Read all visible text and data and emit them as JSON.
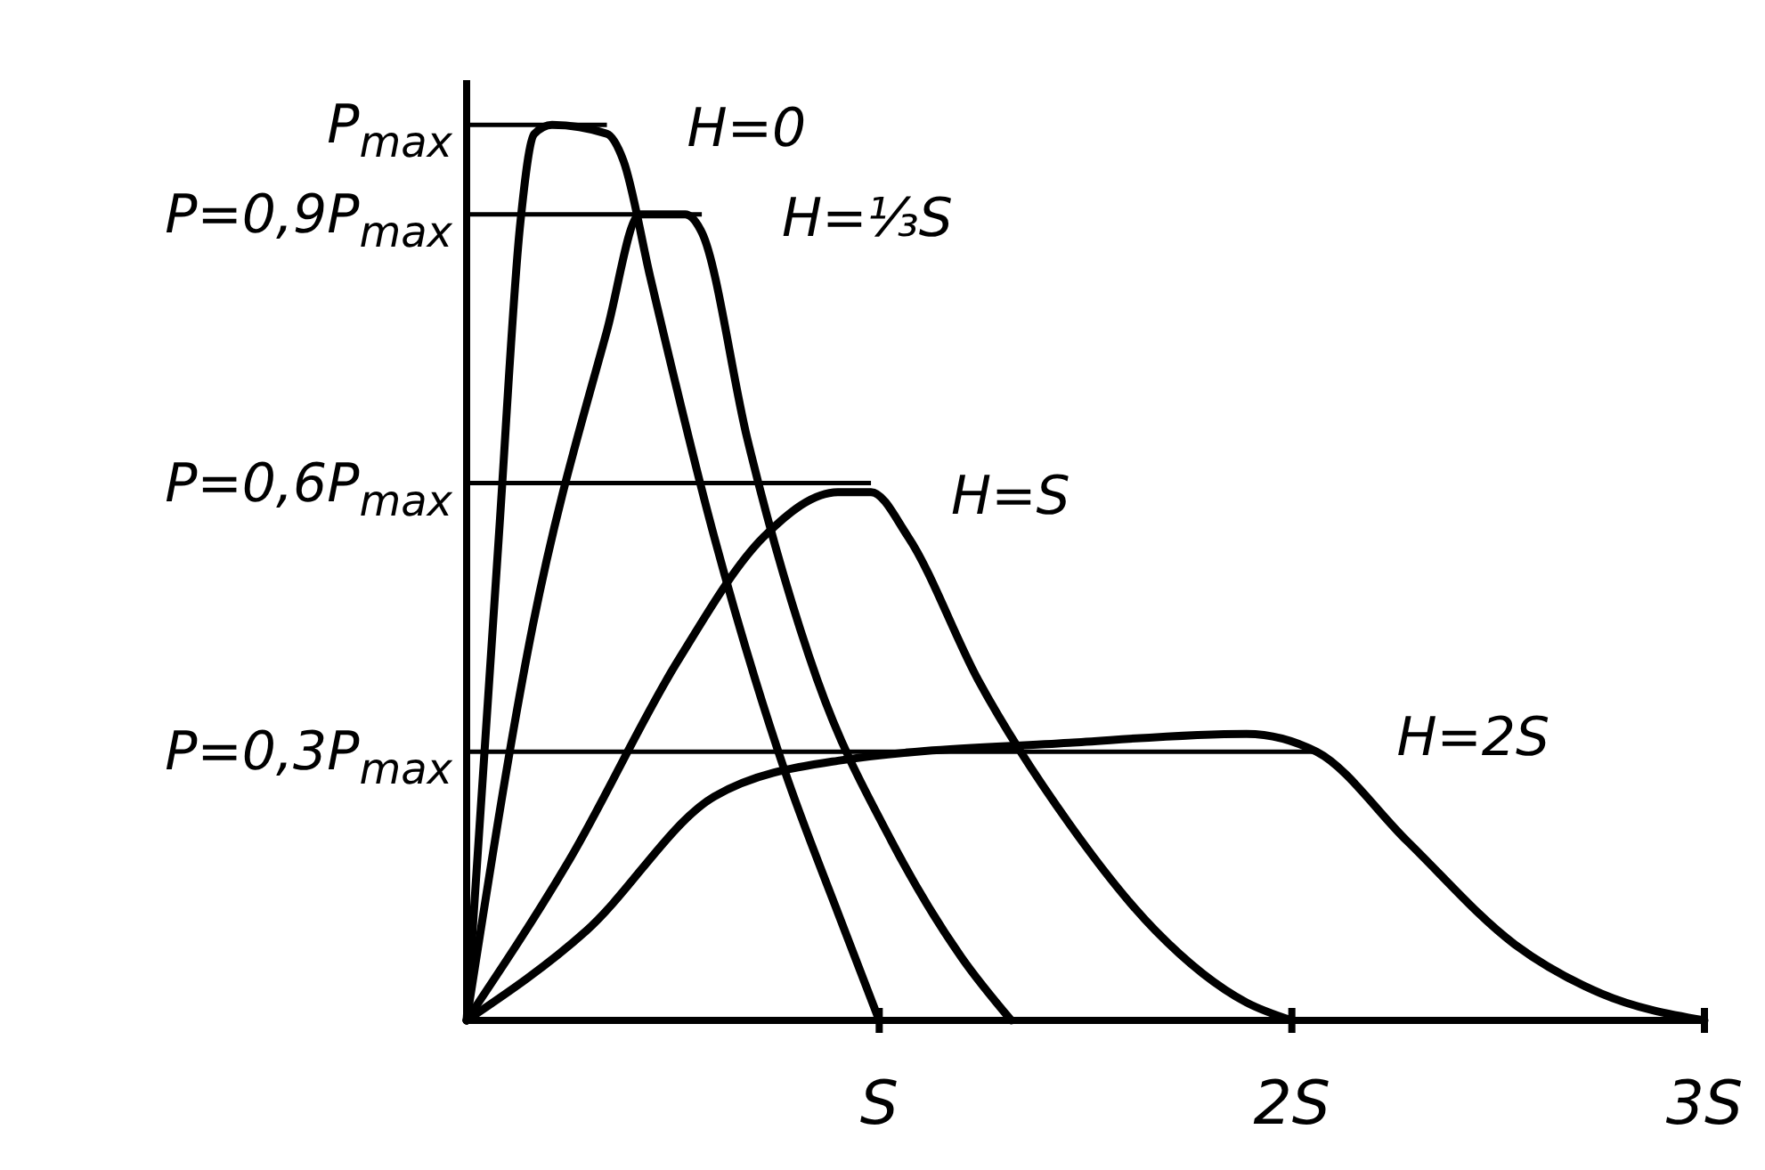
{
  "chart_data": {
    "type": "line",
    "xlim": [
      0,
      3
    ],
    "ylim": [
      0,
      1.05
    ],
    "xticks": [
      {
        "value": 1,
        "label": "S"
      },
      {
        "value": 2,
        "label": "2S"
      },
      {
        "value": 3,
        "label": "3S"
      }
    ],
    "yticks": [
      {
        "value": 0.3,
        "label": "P=0,3P$_{max}$"
      },
      {
        "value": 0.6,
        "label": "P=0,6P$_{max}$"
      },
      {
        "value": 0.9,
        "label": "P=0,9P$_{max}$"
      },
      {
        "value": 1,
        "label": "P$_{max}$"
      }
    ],
    "ref_lines": [
      {
        "axis": "y",
        "value": 1
      },
      {
        "axis": "y",
        "value": 0.9
      },
      {
        "axis": "y",
        "value": 0.6
      },
      {
        "axis": "y",
        "value": 0.3
      }
    ],
    "grid": false,
    "legend": false,
    "marker": "none",
    "line_style": "solid",
    "series": [
      {
        "name": "H=0",
        "color": "#000000",
        "x": [
          0,
          0.078,
          0.13,
          0.164,
          0.207,
          0.34,
          0.38,
          0.445,
          0.6,
          0.77,
          0.9,
          1
        ],
        "values": [
          0,
          0.54,
          0.89,
          0.99,
          1,
          0.99,
          0.96,
          0.83,
          0.54,
          0.28,
          0.12,
          0
        ]
      },
      {
        "name": "H=⅓S",
        "color": "#000000",
        "x": [
          0,
          0.16,
          0.34,
          0.42,
          0.53,
          0.57,
          0.68,
          0.85,
          1.03,
          1.2,
          1.32
        ],
        "values": [
          0,
          0.44,
          0.77,
          0.9,
          0.9,
          0.88,
          0.65,
          0.38,
          0.2,
          0.07,
          0
        ]
      },
      {
        "name": "H=S",
        "color": "#000000",
        "x": [
          0,
          0.25,
          0.51,
          0.72,
          0.9,
          0.98,
          1.07,
          1.24,
          1.46,
          1.67,
          1.89,
          2
        ],
        "values": [
          0,
          0.18,
          0.4,
          0.54,
          0.59,
          0.59,
          0.54,
          0.38,
          0.22,
          0.1,
          0.02,
          0
        ]
      },
      {
        "name": "H=2S",
        "color": "#000000",
        "x": [
          0,
          0.29,
          0.6,
          0.9,
          1.46,
          1.89,
          2.06,
          2.28,
          2.54,
          2.75,
          3
        ],
        "values": [
          0,
          0.1,
          0.25,
          0.29,
          0.31,
          0.32,
          0.3,
          0.2,
          0.085,
          0.03,
          0
        ]
      }
    ]
  }
}
